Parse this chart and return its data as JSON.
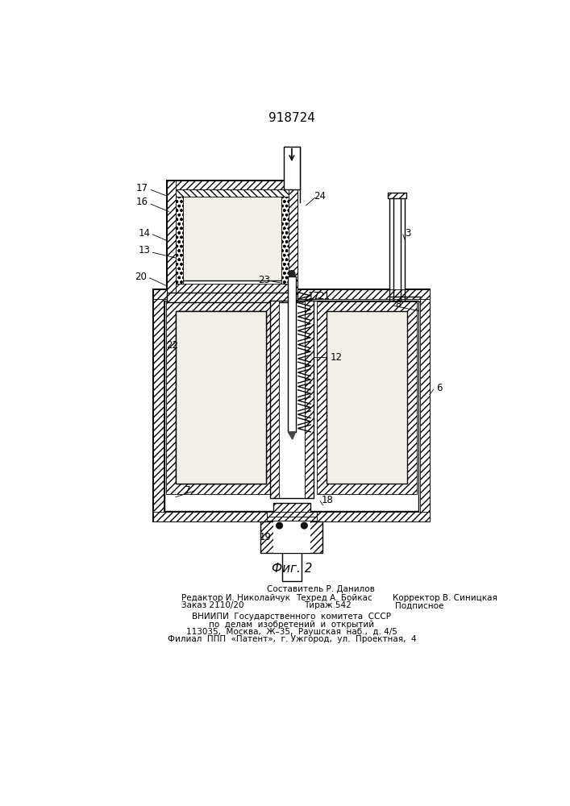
{
  "patent_number": "918724",
  "fig_label": "Фиг. 2",
  "footer_line1": "Составитель Р. Данилов",
  "footer_line2": "Редактор И. Николайчук",
  "footer_line2b": "Техред А. Бойкас",
  "footer_line2c": "Корректор В. Синицкая",
  "footer_line3": "Заказ 2110/20",
  "footer_line3b": "Тираж 542",
  "footer_line3c": "Подписное",
  "footer_line4": "ВНИИПИ  Государственного  комитета  СССР",
  "footer_line5": "по  делам  изобретений  и  открытий",
  "footer_line6": "113035,  Москва,  Ж–35,  Раушская  наб.,  д. 4/5",
  "footer_line7": "Филиал  ППП  «Патент»,  г. Ужгород,  ул.  Проектная,  4",
  "bg_color": "#ffffff",
  "line_color": "#000000"
}
